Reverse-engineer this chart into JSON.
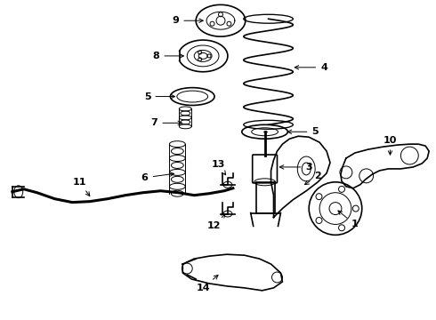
{
  "background_color": "#ffffff",
  "line_color": "#000000",
  "lw_main": 1.2,
  "lw_thin": 0.7,
  "lw_thick": 2.0,
  "font_size": 8.0
}
